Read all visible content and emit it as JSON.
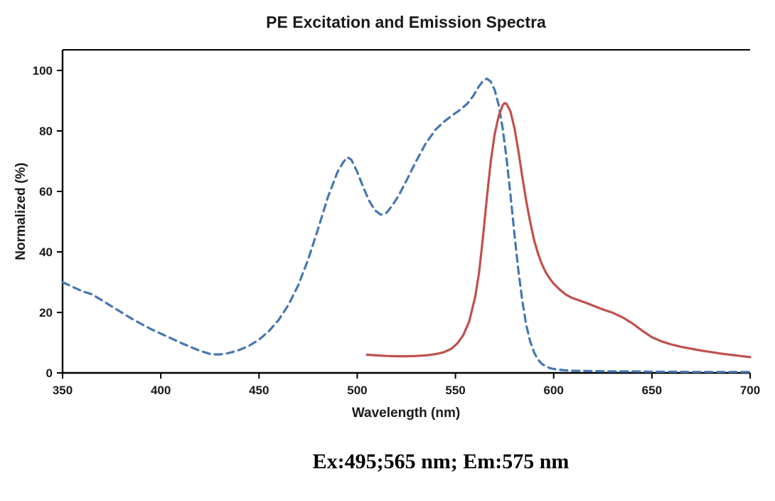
{
  "page": {
    "caption": "Ex:495;565 nm; Em:575 nm"
  },
  "chart_data": {
    "type": "line",
    "title": "PE Excitation and Emission Spectra",
    "xlabel": "Wavelength (nm)",
    "ylabel": "Normalized (%)",
    "xlim": [
      350,
      700
    ],
    "ylim": [
      0,
      100
    ],
    "x_ticks": [
      350,
      400,
      450,
      500,
      550,
      600,
      650,
      700
    ],
    "y_ticks": [
      0,
      20,
      40,
      60,
      80,
      100
    ],
    "grid": false,
    "legend": "none",
    "axis_color": "#000000",
    "text_color": "#1a1a1a",
    "series": [
      {
        "name": "Excitation",
        "style": "dashed",
        "color": "#4677b2",
        "points": [
          [
            350,
            30
          ],
          [
            355,
            28.5
          ],
          [
            360,
            27
          ],
          [
            365,
            26
          ],
          [
            370,
            24
          ],
          [
            375,
            22
          ],
          [
            380,
            20
          ],
          [
            385,
            18
          ],
          [
            390,
            16.2
          ],
          [
            395,
            14.5
          ],
          [
            400,
            13
          ],
          [
            405,
            11.5
          ],
          [
            410,
            10
          ],
          [
            415,
            8.6
          ],
          [
            420,
            7.3
          ],
          [
            425,
            6.3
          ],
          [
            428,
            6.1
          ],
          [
            432,
            6.2
          ],
          [
            436,
            6.8
          ],
          [
            440,
            7.6
          ],
          [
            445,
            9
          ],
          [
            450,
            11
          ],
          [
            455,
            13.8
          ],
          [
            460,
            17.5
          ],
          [
            465,
            22.5
          ],
          [
            470,
            29
          ],
          [
            475,
            37.5
          ],
          [
            480,
            47.5
          ],
          [
            485,
            58
          ],
          [
            490,
            66.5
          ],
          [
            493,
            69.8
          ],
          [
            495,
            71.3
          ],
          [
            497,
            70.5
          ],
          [
            500,
            66.5
          ],
          [
            503,
            61.5
          ],
          [
            506,
            57
          ],
          [
            509,
            53.8
          ],
          [
            512,
            52.3
          ],
          [
            515,
            53
          ],
          [
            518,
            55.5
          ],
          [
            521,
            58.5
          ],
          [
            525,
            63.5
          ],
          [
            530,
            70
          ],
          [
            535,
            76
          ],
          [
            540,
            80.5
          ],
          [
            544,
            83
          ],
          [
            548,
            85
          ],
          [
            552,
            86.8
          ],
          [
            556,
            89
          ],
          [
            559,
            91.5
          ],
          [
            562,
            94.8
          ],
          [
            564,
            96.5
          ],
          [
            566,
            97.3
          ],
          [
            568,
            96.3
          ],
          [
            570,
            93.5
          ],
          [
            572,
            88.5
          ],
          [
            574,
            81
          ],
          [
            576,
            71
          ],
          [
            578,
            59
          ],
          [
            580,
            46
          ],
          [
            582,
            34
          ],
          [
            584,
            24
          ],
          [
            586,
            16
          ],
          [
            588,
            10.5
          ],
          [
            590,
            6.8
          ],
          [
            592,
            4.4
          ],
          [
            594,
            3
          ],
          [
            596,
            2.2
          ],
          [
            598,
            1.6
          ],
          [
            600,
            1.3
          ],
          [
            605,
            0.9
          ],
          [
            610,
            0.7
          ],
          [
            620,
            0.6
          ],
          [
            630,
            0.5
          ],
          [
            640,
            0.5
          ],
          [
            650,
            0.4
          ],
          [
            660,
            0.4
          ],
          [
            670,
            0.3
          ],
          [
            680,
            0.3
          ],
          [
            690,
            0.3
          ],
          [
            700,
            0.3
          ]
        ]
      },
      {
        "name": "Emission",
        "style": "solid",
        "color": "#c0504d",
        "points": [
          [
            505,
            6
          ],
          [
            510,
            5.8
          ],
          [
            515,
            5.6
          ],
          [
            520,
            5.5
          ],
          [
            525,
            5.5
          ],
          [
            530,
            5.6
          ],
          [
            535,
            5.8
          ],
          [
            540,
            6.2
          ],
          [
            544,
            6.8
          ],
          [
            548,
            8
          ],
          [
            551,
            9.8
          ],
          [
            554,
            12.5
          ],
          [
            557,
            17
          ],
          [
            560,
            25
          ],
          [
            562,
            33
          ],
          [
            564,
            45
          ],
          [
            566,
            58
          ],
          [
            568,
            70
          ],
          [
            570,
            79
          ],
          [
            572,
            85
          ],
          [
            574,
            88.5
          ],
          [
            575,
            89.2
          ],
          [
            576,
            89
          ],
          [
            578,
            86.5
          ],
          [
            580,
            81
          ],
          [
            582,
            73.5
          ],
          [
            584,
            65
          ],
          [
            586,
            57
          ],
          [
            588,
            50
          ],
          [
            590,
            44
          ],
          [
            592,
            39.5
          ],
          [
            594,
            36
          ],
          [
            596,
            33.2
          ],
          [
            598,
            31.2
          ],
          [
            600,
            29.5
          ],
          [
            603,
            27.6
          ],
          [
            606,
            26
          ],
          [
            609,
            24.9
          ],
          [
            612,
            24.2
          ],
          [
            615,
            23.5
          ],
          [
            618,
            22.8
          ],
          [
            621,
            22
          ],
          [
            625,
            21
          ],
          [
            630,
            19.9
          ],
          [
            635,
            18.4
          ],
          [
            640,
            16.4
          ],
          [
            645,
            14
          ],
          [
            650,
            11.8
          ],
          [
            655,
            10.4
          ],
          [
            660,
            9.4
          ],
          [
            665,
            8.6
          ],
          [
            670,
            8
          ],
          [
            675,
            7.4
          ],
          [
            680,
            6.9
          ],
          [
            685,
            6.4
          ],
          [
            690,
            6
          ],
          [
            695,
            5.6
          ],
          [
            700,
            5.2
          ]
        ]
      }
    ]
  }
}
